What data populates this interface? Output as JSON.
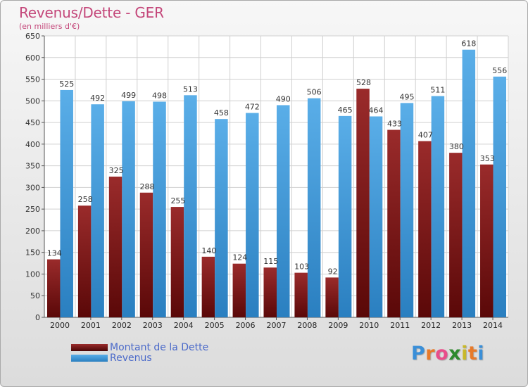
{
  "header": {
    "title": "Revenus/Dette - GER",
    "subtitle": "(en milliers d'€)"
  },
  "colors": {
    "dette": "#7a1414",
    "revenus": "#3d9ce6",
    "title": "#c4477a",
    "legend_text": "#4b6ac9"
  },
  "chart_data": {
    "type": "bar",
    "categories": [
      "2000",
      "2001",
      "2002",
      "2003",
      "2004",
      "2005",
      "2006",
      "2007",
      "2008",
      "2009",
      "2010",
      "2011",
      "2012",
      "2013",
      "2014"
    ],
    "series": [
      {
        "name": "Montant de la Dette",
        "values": [
          134,
          258,
          325,
          288,
          255,
          140,
          124,
          115,
          103,
          92,
          528,
          433,
          407,
          380,
          353
        ]
      },
      {
        "name": "Revenus",
        "values": [
          525,
          492,
          499,
          498,
          513,
          458,
          472,
          490,
          506,
          465,
          464,
          495,
          511,
          618,
          556
        ]
      }
    ],
    "ylim": [
      0,
      650
    ],
    "yticks": [
      0,
      50,
      100,
      150,
      200,
      250,
      300,
      350,
      400,
      450,
      500,
      550,
      600,
      650
    ],
    "grid": true,
    "legend_position": "bottom-left"
  },
  "legend": {
    "items": [
      {
        "label": "Montant de la Dette"
      },
      {
        "label": "Revenus"
      }
    ]
  },
  "logo": {
    "letters": [
      "P",
      "r",
      "o",
      "x",
      "i",
      "t",
      "i"
    ],
    "colors": [
      "#3a8fd8",
      "#e77a2a",
      "#e94e8a",
      "#2d8a2d",
      "#c8b82a",
      "#e77a2a",
      "#3a8fd8"
    ]
  }
}
